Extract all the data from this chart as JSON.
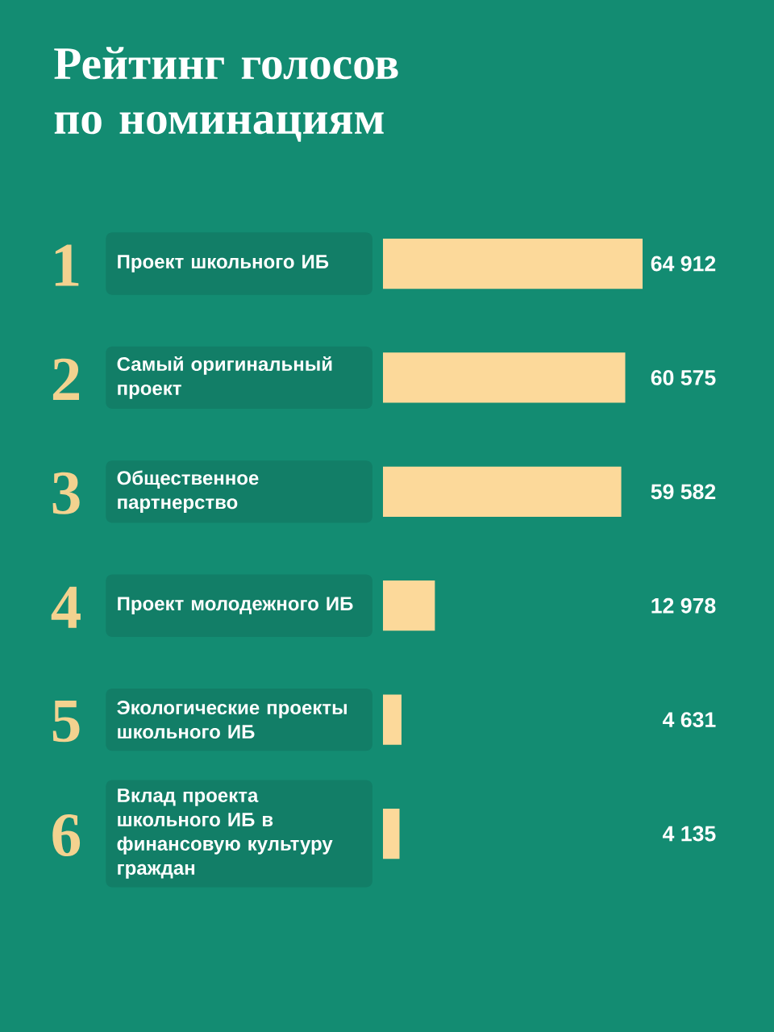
{
  "chart_data": {
    "type": "bar",
    "orientation": "horizontal",
    "title": "Рейтинг голосов по номинациям",
    "categories": [
      "Проект школьного ИБ",
      "Самый оригинальный проект",
      "Общественное партнерство",
      "Проект молодежного ИБ",
      "Экологические проекты школьного ИБ",
      "Вклад проекта школьного ИБ в финансовую культуру граждан"
    ],
    "values": [
      64912,
      60575,
      59582,
      12978,
      4631,
      4135
    ],
    "value_labels": [
      "64 912",
      "60 575",
      "59 582",
      "12 978",
      "4 631",
      "4 135"
    ],
    "color": "#fcd99a",
    "annotations": [
      "1",
      "2",
      "3",
      "4",
      "5",
      "6"
    ]
  }
}
